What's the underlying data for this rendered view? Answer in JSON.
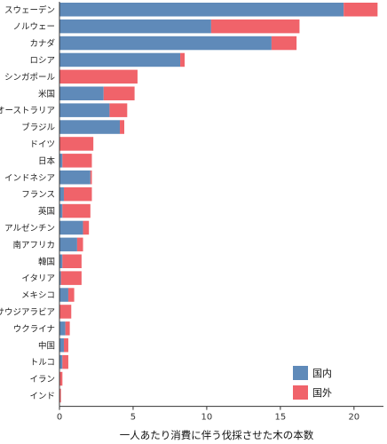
{
  "chart_data": {
    "type": "bar",
    "stacked": true,
    "orientation": "horizontal",
    "title": "",
    "xlabel": "一人あたり消費に伴う伐採させた木の本数",
    "ylabel": "",
    "xlim": [
      0,
      22
    ],
    "xticks": [
      0,
      5,
      10,
      15,
      20
    ],
    "grid": false,
    "legend_position": "bottom-right",
    "categories": [
      "スウェーデン",
      "ノルウェー",
      "カナダ",
      "ロシア",
      "シンガポール",
      "米国",
      "オーストラリア",
      "ブラジル",
      "ドイツ",
      "日本",
      "インドネシア",
      "フランス",
      "英国",
      "アルゼンチン",
      "南アフリカ",
      "韓国",
      "イタリア",
      "メキシコ",
      "サウジアラビア",
      "ウクライナ",
      "中国",
      "トルコ",
      "イラン",
      "インド"
    ],
    "series": [
      {
        "name": "国内",
        "color": "#5f8ab9",
        "values": [
          19.3,
          10.3,
          14.4,
          8.2,
          0.0,
          3.0,
          3.4,
          4.1,
          0.0,
          0.2,
          2.1,
          0.3,
          0.2,
          1.6,
          1.2,
          0.2,
          0.1,
          0.6,
          0.0,
          0.4,
          0.3,
          0.2,
          0.0,
          0.0
        ]
      },
      {
        "name": "国外",
        "color": "#f0636a",
        "values": [
          2.3,
          6.0,
          1.7,
          0.3,
          5.3,
          2.1,
          1.2,
          0.3,
          2.3,
          2.0,
          0.1,
          1.9,
          1.9,
          0.4,
          0.4,
          1.3,
          1.4,
          0.4,
          0.8,
          0.3,
          0.3,
          0.4,
          0.2,
          0.1
        ]
      }
    ]
  }
}
